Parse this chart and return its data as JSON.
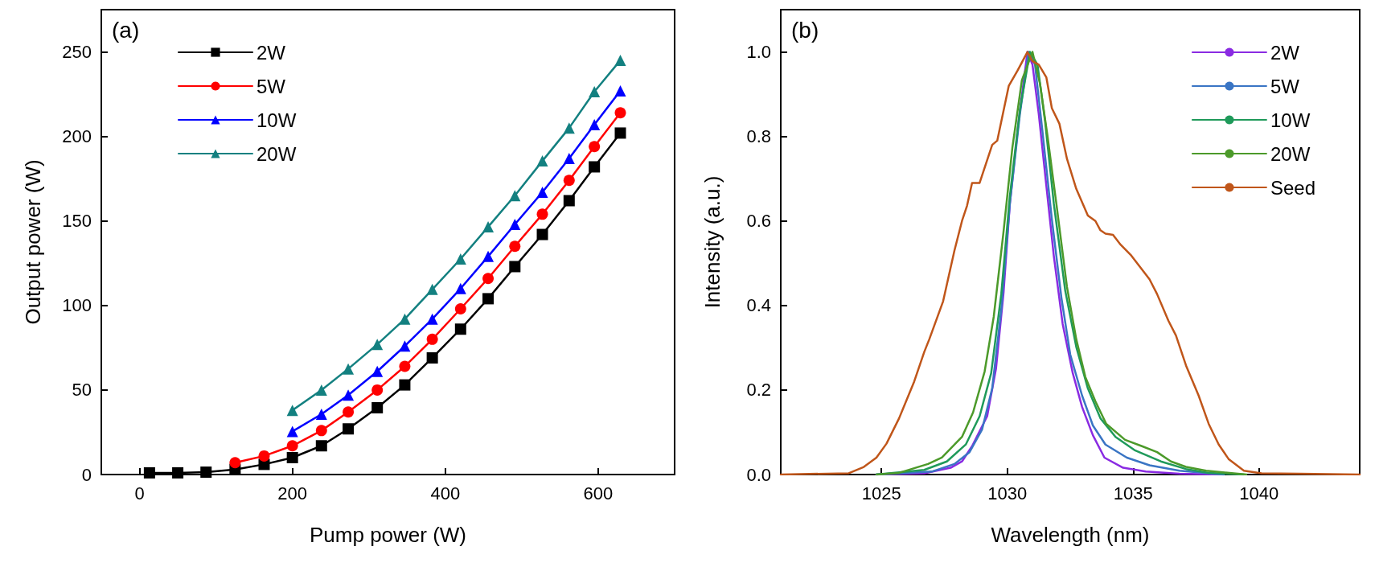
{
  "chart_data": [
    {
      "type": "line",
      "title": "(a)",
      "xlabel": "Pump power (W)",
      "ylabel": "Output power (W)",
      "xlim": [
        -50,
        700
      ],
      "ylim": [
        0,
        275
      ],
      "xticks": [
        0,
        200,
        400,
        600
      ],
      "yticks": [
        0,
        50,
        100,
        150,
        200,
        250
      ],
      "legend": "top left",
      "grid": false,
      "line_style": "solid",
      "series": [
        {
          "name": "2W",
          "color": "#000000",
          "marker": "square",
          "x": [
            13,
            50,
            87,
            125,
            163,
            200,
            238,
            273,
            311,
            347,
            383,
            420,
            456,
            491,
            527,
            562,
            595,
            629
          ],
          "values": [
            1,
            1,
            1.4,
            3,
            6,
            10,
            17,
            27,
            39.5,
            53,
            69,
            86,
            104,
            123,
            142,
            162,
            182,
            202
          ]
        },
        {
          "name": "5W",
          "color": "#ff0000",
          "marker": "circle",
          "x": [
            125,
            163,
            200,
            238,
            273,
            311,
            347,
            383,
            420,
            456,
            491,
            527,
            562,
            595,
            629
          ],
          "values": [
            7,
            11,
            17,
            26,
            37,
            50,
            64,
            80,
            98,
            116,
            135,
            154,
            174,
            194,
            214
          ]
        },
        {
          "name": "10W",
          "color": "#0000ff",
          "marker": "triangle",
          "x": [
            200,
            238,
            273,
            311,
            347,
            383,
            420,
            456,
            491,
            527,
            562,
            595,
            629
          ],
          "values": [
            25.5,
            35.7,
            47,
            61,
            76,
            92,
            110,
            129,
            148,
            167,
            187,
            207,
            227
          ]
        },
        {
          "name": "20W",
          "color": "#138080",
          "marker": "triangle",
          "x": [
            200,
            238,
            273,
            311,
            347,
            383,
            420,
            456,
            491,
            527,
            562,
            595,
            629
          ],
          "values": [
            38,
            50,
            62.5,
            77,
            92,
            109.5,
            127.5,
            146.5,
            165,
            185.5,
            205,
            226.5,
            245
          ]
        }
      ]
    },
    {
      "type": "line",
      "title": "(b)",
      "xlabel": "Wavelength (nm)",
      "ylabel": "Intensity (a.u.)",
      "xlim": [
        1021,
        1044
      ],
      "ylim": [
        0,
        1.1
      ],
      "xticks": [
        1025,
        1030,
        1035,
        1040
      ],
      "yticks": [
        {
          "value": 0,
          "label": "0.0"
        },
        {
          "value": 0.2,
          "label": "0.2"
        },
        {
          "value": 0.4,
          "label": "0.4"
        },
        {
          "value": 0.6,
          "label": "0.6"
        },
        {
          "value": 0.8,
          "label": "0.8"
        },
        {
          "value": 1,
          "label": "1.0"
        }
      ],
      "legend": "top right",
      "grid": false,
      "marker": "none",
      "line_style": "solid",
      "series": [
        {
          "name": "2W",
          "color": "#8a2be2",
          "x": [
            1024.8,
            1026.7,
            1027.75,
            1028.2,
            1028.6,
            1029.2,
            1029.55,
            1029.85,
            1030.1,
            1030.45,
            1030.8,
            1031,
            1031.25,
            1031.55,
            1031.85,
            1032.2,
            1032.6,
            1032.97,
            1033.4,
            1033.86,
            1034.6,
            1035.5,
            1036.84,
            1038.6
          ],
          "values": [
            0,
            0.003,
            0.016,
            0.031,
            0.067,
            0.138,
            0.25,
            0.43,
            0.64,
            0.836,
            1,
            0.97,
            0.853,
            0.684,
            0.516,
            0.356,
            0.24,
            0.16,
            0.093,
            0.04,
            0.016,
            0.007,
            0.002,
            0
          ]
        },
        {
          "name": "5W",
          "color": "#3a75c4",
          "x": [
            1024.8,
            1027,
            1027.9,
            1028.5,
            1029,
            1029.4,
            1029.76,
            1030.1,
            1030.5,
            1030.85,
            1031.1,
            1031.4,
            1031.77,
            1032.15,
            1032.5,
            1032.97,
            1033.4,
            1033.9,
            1034.75,
            1035.65,
            1036.84,
            1038.6
          ],
          "values": [
            0,
            0.007,
            0.025,
            0.053,
            0.107,
            0.204,
            0.39,
            0.64,
            0.853,
            1,
            0.97,
            0.81,
            0.604,
            0.418,
            0.284,
            0.187,
            0.116,
            0.071,
            0.04,
            0.022,
            0.009,
            0
          ]
        },
        {
          "name": "10W",
          "color": "#1f9a5a",
          "x": [
            1024.8,
            1026.7,
            1027.6,
            1028.35,
            1028.9,
            1029.36,
            1029.76,
            1030.1,
            1030.5,
            1030.9,
            1031.2,
            1031.5,
            1031.85,
            1032.3,
            1032.74,
            1033.2,
            1033.7,
            1034.3,
            1035.05,
            1036.1,
            1037.1,
            1038,
            1039.4
          ],
          "values": [
            0,
            0.011,
            0.031,
            0.071,
            0.138,
            0.24,
            0.427,
            0.658,
            0.862,
            1,
            0.97,
            0.836,
            0.64,
            0.436,
            0.302,
            0.204,
            0.133,
            0.089,
            0.058,
            0.031,
            0.013,
            0.004,
            0
          ]
        },
        {
          "name": "20W",
          "color": "#4c9a2a",
          "x": [
            1024.8,
            1025.7,
            1026.85,
            1027.4,
            1028.2,
            1028.64,
            1029.1,
            1029.46,
            1029.84,
            1030.2,
            1030.58,
            1031,
            1031.3,
            1031.6,
            1031.97,
            1032.37,
            1032.74,
            1033.1,
            1033.5,
            1033.93,
            1034.68,
            1035.35,
            1035.95,
            1036.5,
            1037.1,
            1037.9,
            1039.5
          ],
          "values": [
            0,
            0.004,
            0.025,
            0.04,
            0.089,
            0.147,
            0.244,
            0.373,
            0.569,
            0.773,
            0.933,
            1,
            0.924,
            0.8,
            0.631,
            0.444,
            0.32,
            0.231,
            0.173,
            0.12,
            0.082,
            0.067,
            0.053,
            0.031,
            0.018,
            0.009,
            0
          ]
        },
        {
          "name": "Seed",
          "color": "#c0561a",
          "x": [
            1021,
            1023.7,
            1024.3,
            1024.8,
            1025.2,
            1025.7,
            1026.3,
            1026.7,
            1026.9,
            1027.45,
            1027.9,
            1028.2,
            1028.4,
            1028.6,
            1028.9,
            1029.4,
            1029.6,
            1030.06,
            1030.4,
            1030.8,
            1031,
            1031.25,
            1031.55,
            1031.77,
            1032.07,
            1032.37,
            1032.74,
            1033.2,
            1033.5,
            1033.7,
            1033.9,
            1034.2,
            1034.5,
            1034.9,
            1035.3,
            1035.65,
            1035.95,
            1036.4,
            1036.7,
            1037.1,
            1037.6,
            1038,
            1038.4,
            1038.8,
            1039.4,
            1040.1,
            1041.6,
            1044
          ],
          "values": [
            0,
            0.003,
            0.018,
            0.04,
            0.073,
            0.133,
            0.22,
            0.29,
            0.32,
            0.41,
            0.53,
            0.6,
            0.636,
            0.69,
            0.69,
            0.78,
            0.79,
            0.92,
            0.955,
            1,
            0.978,
            0.97,
            0.94,
            0.867,
            0.83,
            0.747,
            0.676,
            0.613,
            0.6,
            0.578,
            0.57,
            0.567,
            0.544,
            0.52,
            0.489,
            0.462,
            0.427,
            0.364,
            0.329,
            0.258,
            0.187,
            0.12,
            0.071,
            0.036,
            0.009,
            0.003,
            0.002,
            0
          ]
        }
      ]
    }
  ]
}
